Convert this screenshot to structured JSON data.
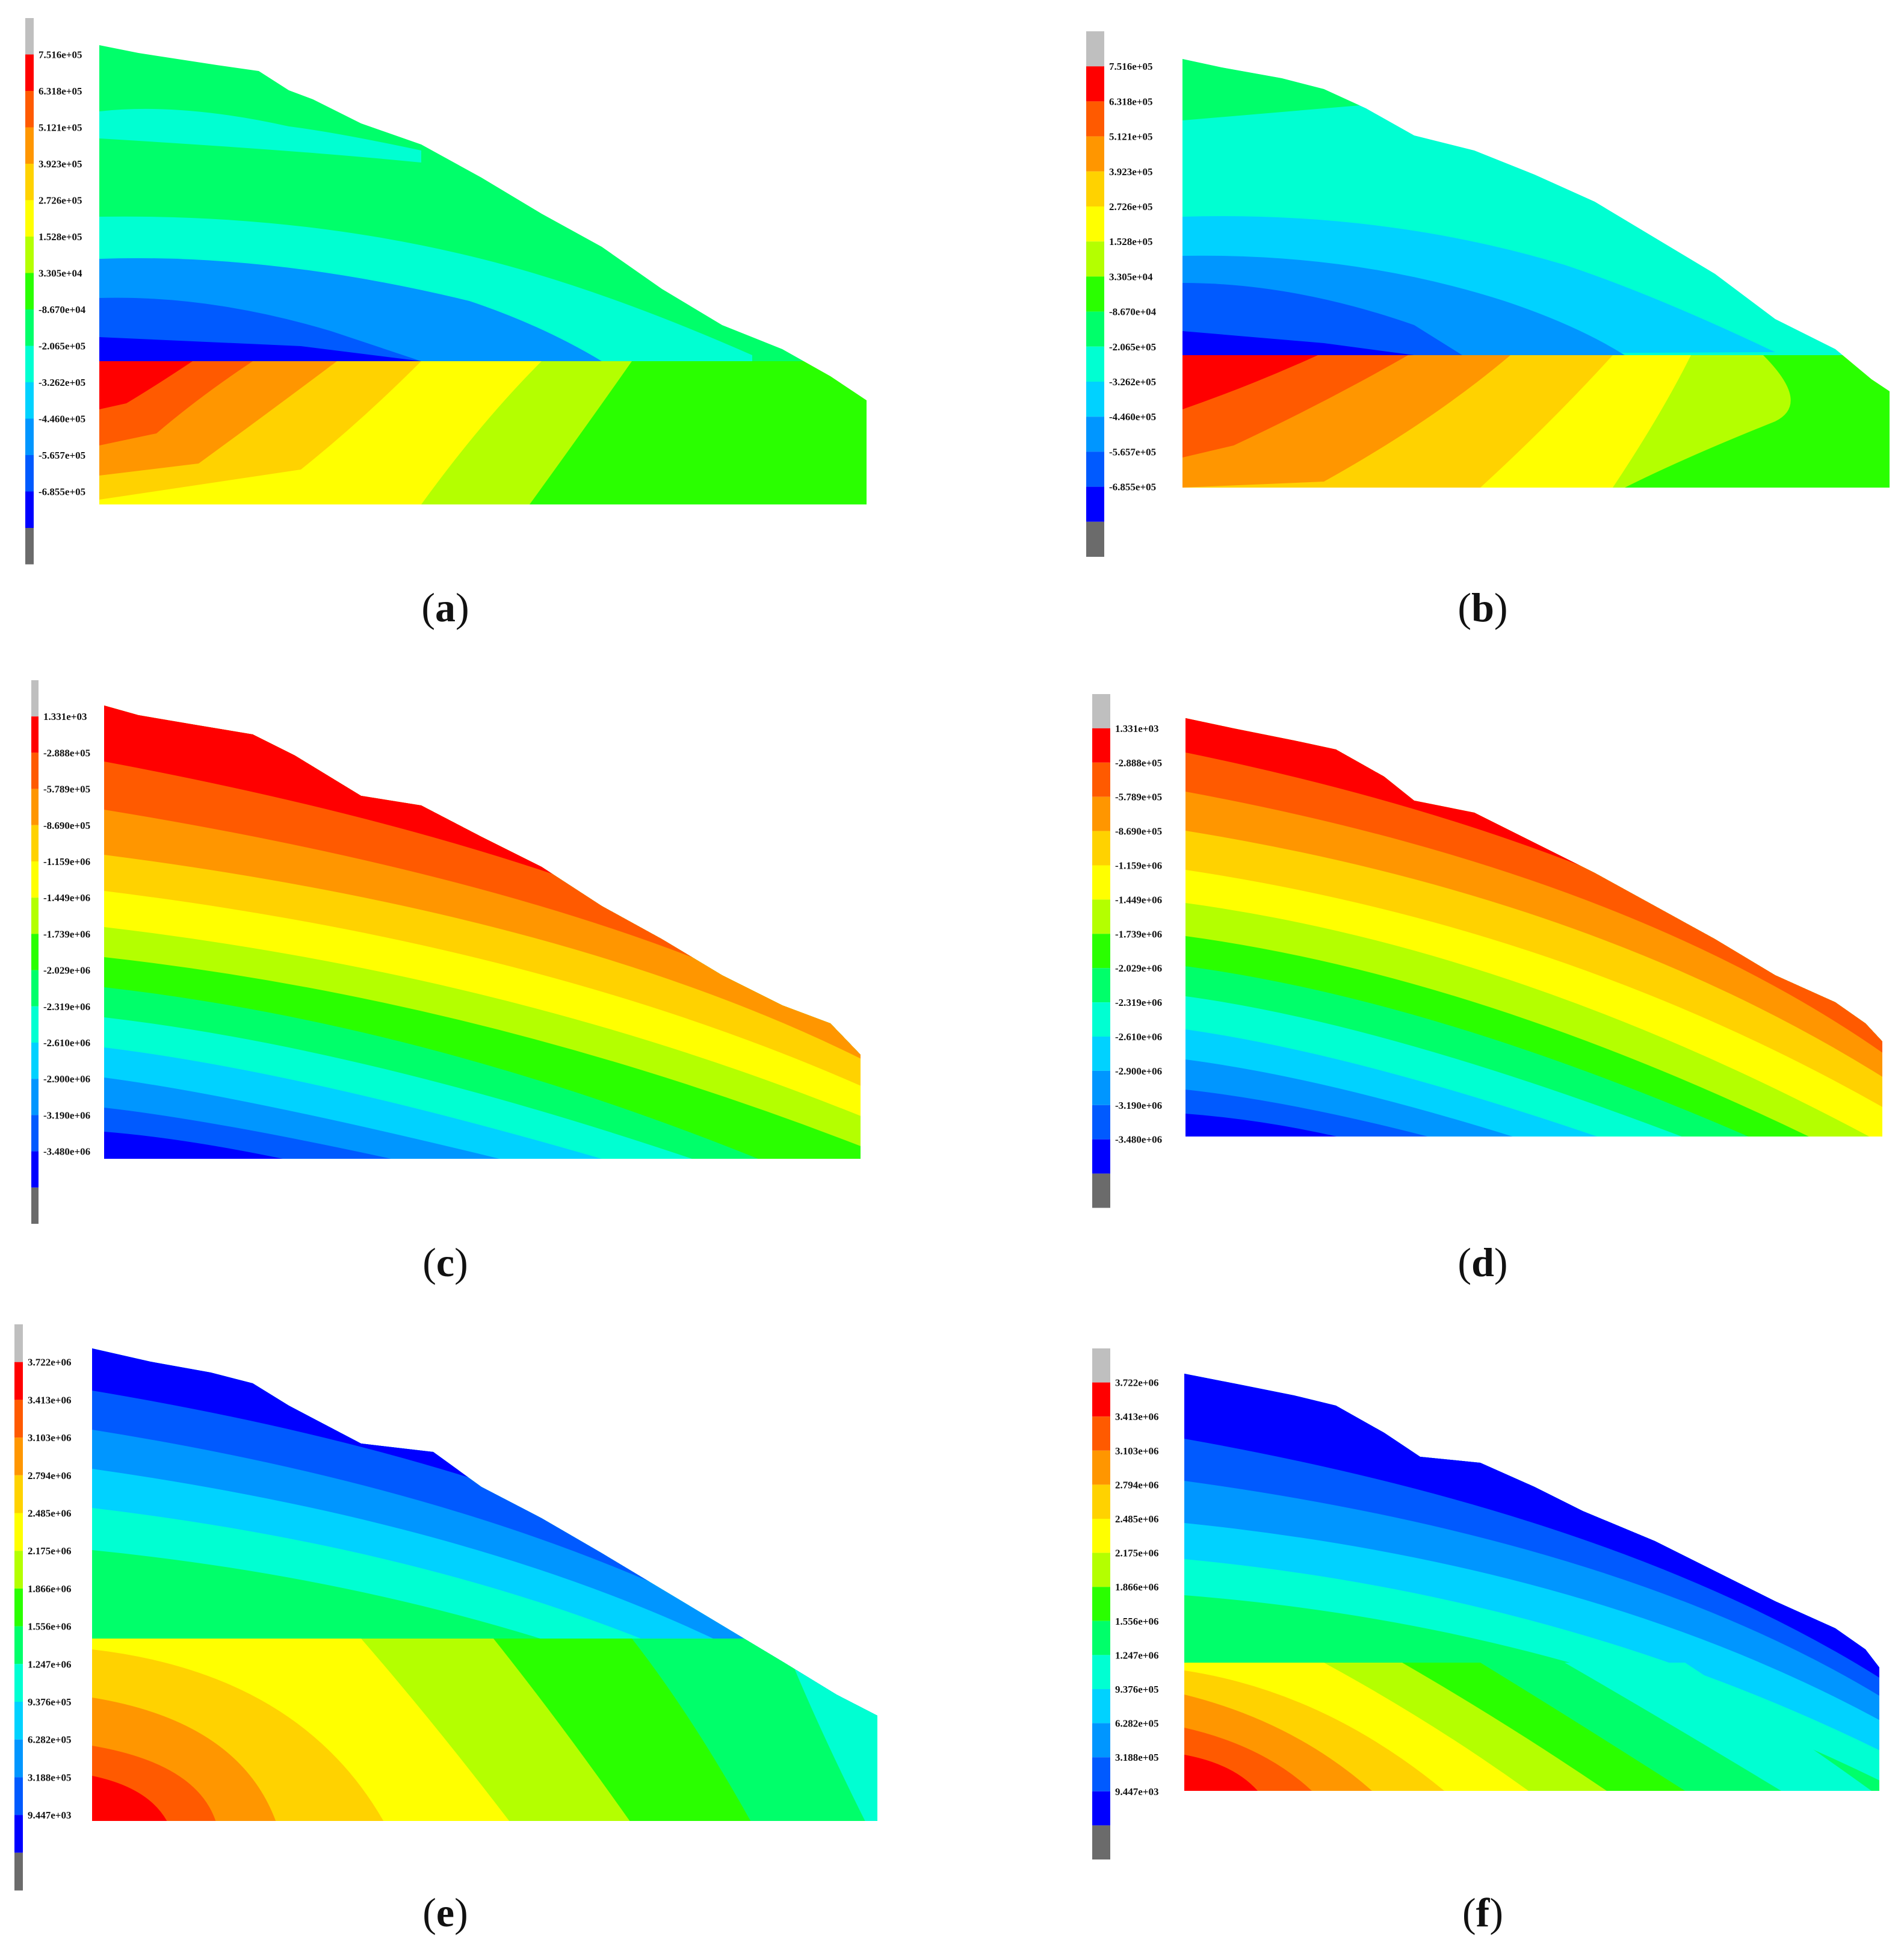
{
  "panels": [
    {
      "id": "a",
      "caption": "a",
      "top_band": "#bfbfbf",
      "bottom_band": "#6b6b6b",
      "levels": [
        "7.516e+05",
        "6.318e+05",
        "5.121e+05",
        "3.923e+05",
        "2.726e+05",
        "1.528e+05",
        "3.305e+04",
        "-8.670e+04",
        "-2.065e+05",
        "-3.262e+05",
        "-4.460e+05",
        "-5.657e+05",
        "-6.855e+05"
      ],
      "colors": [
        "#ff0000",
        "#ff5a00",
        "#ff9600",
        "#ffd200",
        "#ffff00",
        "#b4ff00",
        "#2aff00",
        "#00ff6a",
        "#00ffd2",
        "#00d2ff",
        "#0096ff",
        "#005aff",
        "#0000ff"
      ]
    },
    {
      "id": "b",
      "caption": "b",
      "top_band": "#bfbfbf",
      "bottom_band": "#6b6b6b",
      "levels": [
        "7.516e+05",
        "6.318e+05",
        "5.121e+05",
        "3.923e+05",
        "2.726e+05",
        "1.528e+05",
        "3.305e+04",
        "-8.670e+04",
        "-2.065e+05",
        "-3.262e+05",
        "-4.460e+05",
        "-5.657e+05",
        "-6.855e+05"
      ],
      "colors": [
        "#ff0000",
        "#ff5a00",
        "#ff9600",
        "#ffd200",
        "#ffff00",
        "#b4ff00",
        "#2aff00",
        "#00ff6a",
        "#00ffd2",
        "#00d2ff",
        "#0096ff",
        "#005aff",
        "#0000ff"
      ]
    },
    {
      "id": "c",
      "caption": "c",
      "top_band": "#bfbfbf",
      "bottom_band": "#6b6b6b",
      "levels": [
        "1.331e+03",
        "-2.888e+05",
        "-5.789e+05",
        "-8.690e+05",
        "-1.159e+06",
        "-1.449e+06",
        "-1.739e+06",
        "-2.029e+06",
        "-2.319e+06",
        "-2.610e+06",
        "-2.900e+06",
        "-3.190e+06",
        "-3.480e+06"
      ],
      "colors": [
        "#ff0000",
        "#ff5a00",
        "#ff9600",
        "#ffd200",
        "#ffff00",
        "#b4ff00",
        "#2aff00",
        "#00ff6a",
        "#00ffd2",
        "#00d2ff",
        "#0096ff",
        "#005aff",
        "#0000ff"
      ]
    },
    {
      "id": "d",
      "caption": "d",
      "top_band": "#bfbfbf",
      "bottom_band": "#6b6b6b",
      "levels": [
        "1.331e+03",
        "-2.888e+05",
        "-5.789e+05",
        "-8.690e+05",
        "-1.159e+06",
        "-1.449e+06",
        "-1.739e+06",
        "-2.029e+06",
        "-2.319e+06",
        "-2.610e+06",
        "-2.900e+06",
        "-3.190e+06",
        "-3.480e+06"
      ],
      "colors": [
        "#ff0000",
        "#ff5a00",
        "#ff9600",
        "#ffd200",
        "#ffff00",
        "#b4ff00",
        "#2aff00",
        "#00ff6a",
        "#00ffd2",
        "#00d2ff",
        "#0096ff",
        "#005aff",
        "#0000ff"
      ]
    },
    {
      "id": "e",
      "caption": "e",
      "top_band": "#bfbfbf",
      "bottom_band": "#6b6b6b",
      "levels": [
        "3.722e+06",
        "3.413e+06",
        "3.103e+06",
        "2.794e+06",
        "2.485e+06",
        "2.175e+06",
        "1.866e+06",
        "1.556e+06",
        "1.247e+06",
        "9.376e+05",
        "6.282e+05",
        "3.188e+05",
        "9.447e+03"
      ],
      "colors": [
        "#ff0000",
        "#ff5a00",
        "#ff9600",
        "#ffd200",
        "#ffff00",
        "#b4ff00",
        "#2aff00",
        "#00ff6a",
        "#00ffd2",
        "#00d2ff",
        "#0096ff",
        "#005aff",
        "#0000ff"
      ]
    },
    {
      "id": "f",
      "caption": "f",
      "top_band": "#bfbfbf",
      "bottom_band": "#6b6b6b",
      "levels": [
        "3.722e+06",
        "3.413e+06",
        "3.103e+06",
        "2.794e+06",
        "2.485e+06",
        "2.175e+06",
        "1.866e+06",
        "1.556e+06",
        "1.247e+06",
        "9.376e+05",
        "6.282e+05",
        "3.188e+05",
        "9.447e+03"
      ],
      "colors": [
        "#ff0000",
        "#ff5a00",
        "#ff9600",
        "#ffd200",
        "#ffff00",
        "#b4ff00",
        "#2aff00",
        "#00ff6a",
        "#00ffd2",
        "#00d2ff",
        "#0096ff",
        "#005aff",
        "#0000ff"
      ]
    }
  ]
}
